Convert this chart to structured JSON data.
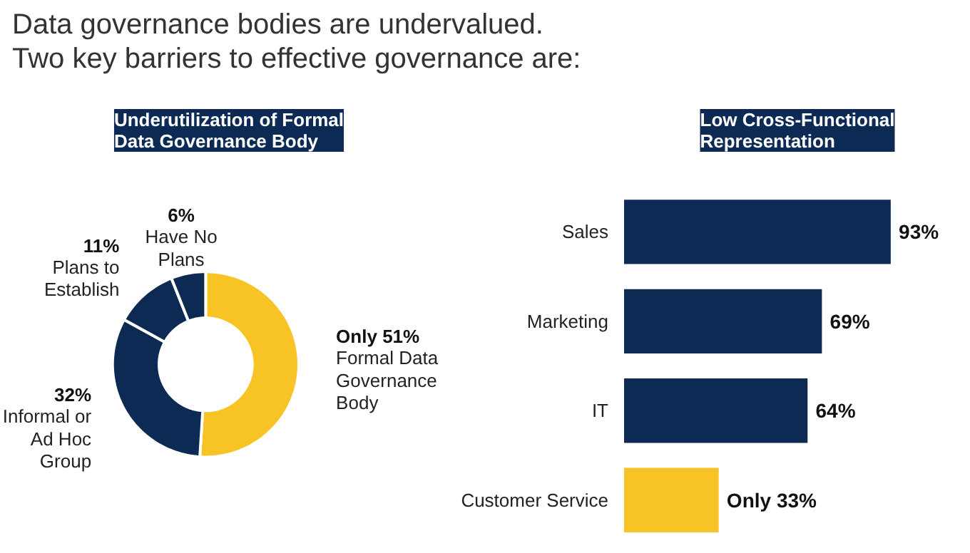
{
  "chart_data": [
    {
      "type": "other",
      "title": "Data governance bodies are undervalued.\nTwo key barriers to effective governance are:"
    },
    {
      "type": "donut",
      "title": "Underutilization of Formal\nData Governance Body",
      "categories": [
        "Formal Data Governance Body",
        "Informal or Ad Hoc Group",
        "Plans to Establish",
        "Have No Plans"
      ],
      "values": [
        51,
        32,
        11,
        6
      ],
      "value_labels": [
        "Only 51%",
        "32%",
        "11%",
        "6%"
      ],
      "colors": [
        "#f7c325",
        "#0d2a55",
        "#0d2a55",
        "#0d2a55"
      ]
    },
    {
      "type": "bar",
      "orientation": "horizontal",
      "title": "Low Cross-Functional\nRepresentation",
      "categories": [
        "Sales",
        "Marketing",
        "IT",
        "Customer Service"
      ],
      "values": [
        93,
        69,
        64,
        33
      ],
      "value_labels": [
        "93%",
        "69%",
        "64%",
        "Only 33%"
      ],
      "colors": [
        "#0d2a55",
        "#0d2a55",
        "#0d2a55",
        "#f7c325"
      ]
    }
  ]
}
